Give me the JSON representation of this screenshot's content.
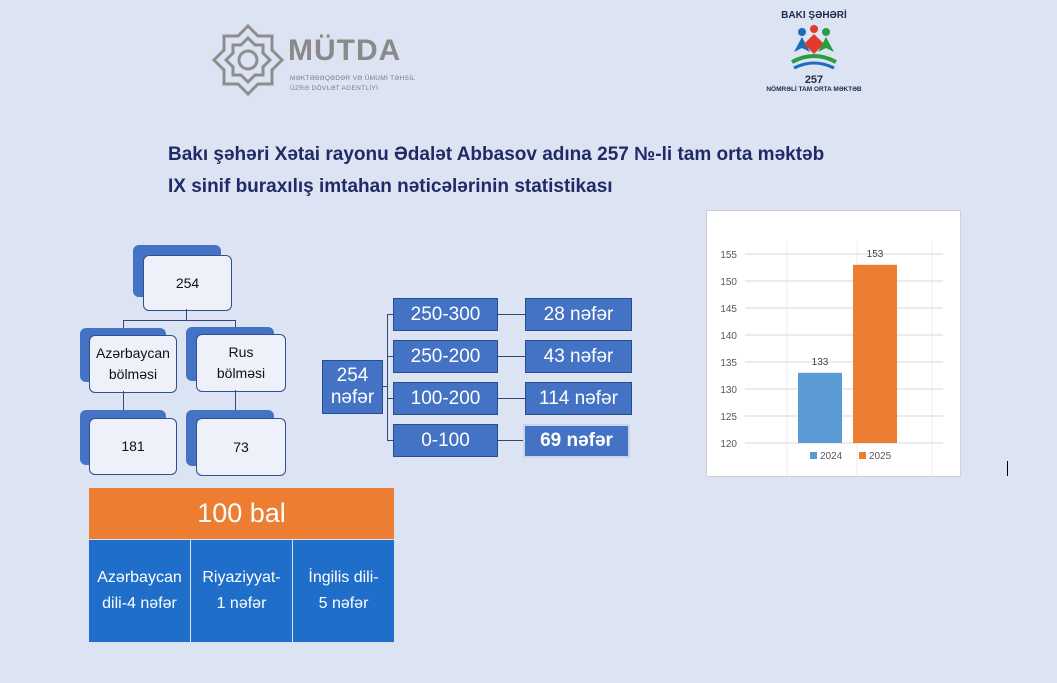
{
  "logos": {
    "left_name": "MÜTDA",
    "left_sub1": "MƏKTƏBƏQƏDƏR VƏ ÜMUMİ TƏHSİL",
    "left_sub2": "ÜZRƏ DÖVLƏT AGENTLİYİ",
    "right_top": "BAKI ŞƏHƏRİ",
    "right_num": "257",
    "right_bottom": "NÖMRƏLİ TAM ORTA MƏKTƏB"
  },
  "title": {
    "line1": "Bakı şəhəri Xətai rayonu Ədalət Abbasov adına 257 №-li tam orta məktəb",
    "line2": "IX sinif buraxılış imtahan nəticələrinin statistikası"
  },
  "tree": {
    "total": "254",
    "az_label_1": "Azərbaycan",
    "az_label_2": "bölməsi",
    "ru_label_1": "Rus",
    "ru_label_2": "bölməsi",
    "az_count": "181",
    "ru_count": "73"
  },
  "ranges": {
    "total_1": "254",
    "total_2": "nəfər",
    "rows": [
      {
        "range": "250-300",
        "count": "28 nəfər"
      },
      {
        "range": "250-200",
        "count": "43 nəfər"
      },
      {
        "range": "100-200",
        "count": "114 nəfər"
      },
      {
        "range": "0-100",
        "count": "69 nəfər"
      }
    ]
  },
  "perfect": {
    "header": "100 bal",
    "az_1": "Azərbaycan",
    "az_2": "dili-4 nəfər",
    "math_1": "Riyaziyyat-",
    "math_2": "1 nəfər",
    "eng_1": "İngilis dili-",
    "eng_2": "5 nəfər"
  },
  "chart_data": {
    "type": "bar",
    "categories": [
      "2024",
      "2025"
    ],
    "values": [
      133,
      153
    ],
    "colors": [
      "#5b9bd5",
      "#ed7d31"
    ],
    "ylim": [
      120,
      155
    ],
    "yticks": [
      120,
      125,
      130,
      135,
      140,
      145,
      150,
      155
    ],
    "legend_position": "bottom"
  }
}
